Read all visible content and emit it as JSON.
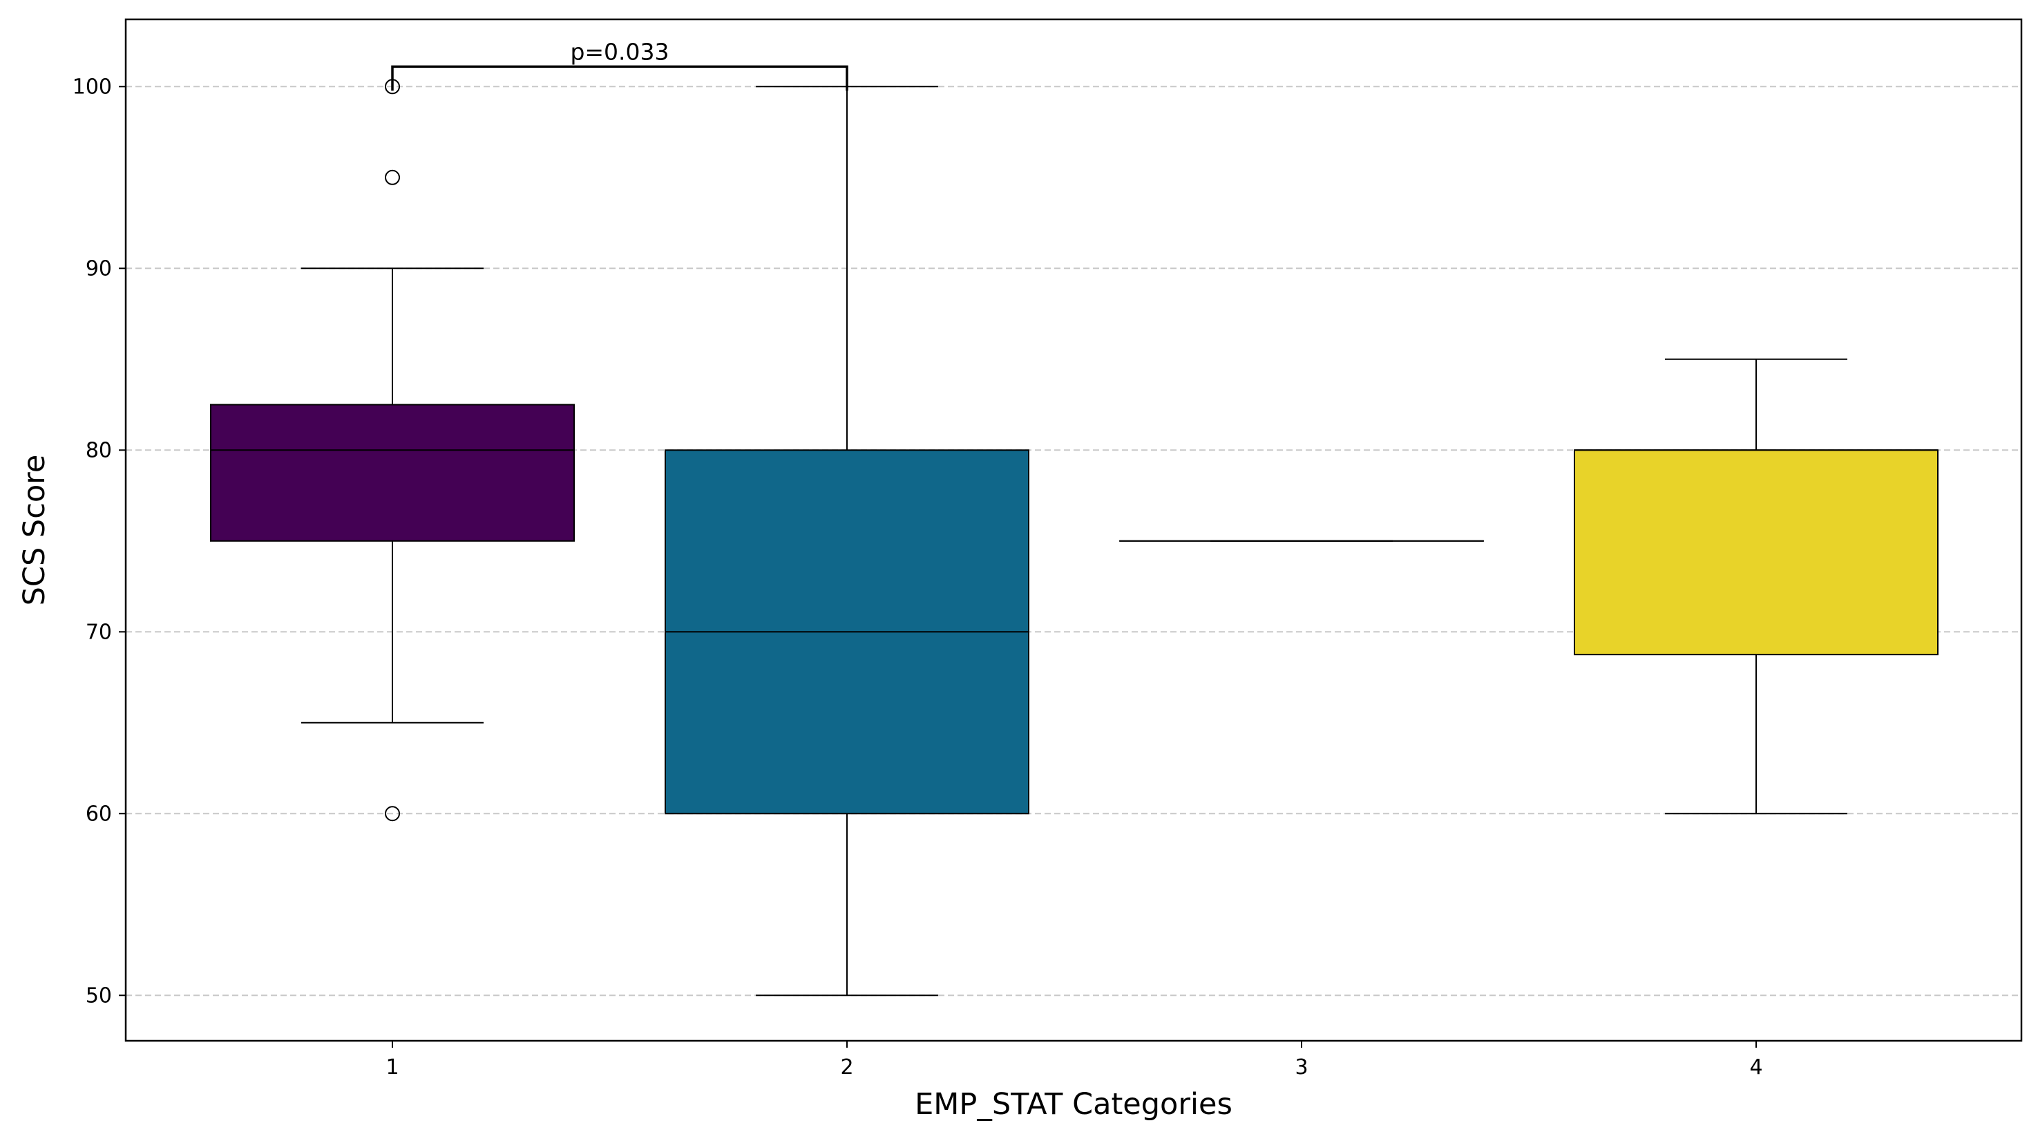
{
  "chart_data": {
    "type": "box",
    "title": "",
    "xlabel": "EMP_STAT Categories",
    "ylabel": "SCS Score",
    "categories": [
      "1",
      "2",
      "3",
      "4"
    ],
    "ylim": [
      47.5,
      103.7
    ],
    "yticks": [
      50,
      60,
      70,
      80,
      90,
      100
    ],
    "grid": {
      "y": true,
      "style": "dashed"
    },
    "boxes": [
      {
        "category": "1",
        "whisker_low": 65,
        "q1": 75,
        "median": 80,
        "q3": 82.5,
        "whisker_high": 90,
        "outliers": [
          100,
          95,
          60
        ],
        "color": "#440154"
      },
      {
        "category": "2",
        "whisker_low": 50,
        "q1": 60,
        "median": 70,
        "q3": 80,
        "whisker_high": 100,
        "outliers": [],
        "color": "#10678a"
      },
      {
        "category": "3",
        "whisker_low": 75,
        "q1": 75,
        "median": 75,
        "q3": 75,
        "whisker_high": 75,
        "outliers": [],
        "color": "#25848e"
      },
      {
        "category": "4",
        "whisker_low": 60,
        "q1": 68.75,
        "median": 80,
        "q3": 80,
        "whisker_high": 85,
        "outliers": [],
        "color": "#e8d329"
      }
    ],
    "annotations": [
      {
        "text": "p=0.033",
        "from_category": "1",
        "to_category": "2",
        "y_value": 101.1
      }
    ]
  }
}
